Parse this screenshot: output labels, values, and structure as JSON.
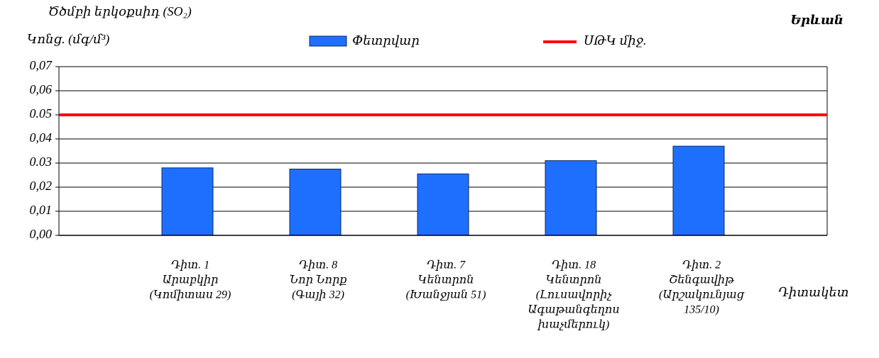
{
  "chart_data": {
    "type": "bar",
    "title": "Ծծմբի երկօքսիդ (SO₂)",
    "y_label": "Կոնց. (մգ/մ³)",
    "x_label": "Դիտակետ",
    "city": "Երևան",
    "categories": [
      [
        "Դիտ. 1",
        "Արաբկիր",
        "(Կոմիտաս 29)"
      ],
      [
        "Դիտ. 8",
        "Նոր Նորք",
        "(Գայի 32)"
      ],
      [
        "Դիտ. 7",
        "Կենտրոն",
        "(Խանջյան 51)"
      ],
      [
        "Դիտ. 18",
        "Կենտրոն",
        "(Լուսավորիչ",
        "Ագաթանգեղոս",
        "խաչմերուկ)"
      ],
      [
        "Դիտ. 2",
        "Շենգավիթ",
        "(Արշակունյաց",
        "135/10)"
      ]
    ],
    "series": [
      {
        "name": "Փետրվար",
        "color": "#1f6fff",
        "values": [
          0.028,
          0.0275,
          0.0255,
          0.031,
          0.037
        ]
      }
    ],
    "reference_line": {
      "name": "ՍԹԿ միջ.",
      "value": 0.05,
      "color": "#ff0000"
    },
    "ylim": [
      0,
      0.07
    ],
    "yticks": [
      {
        "value": 0,
        "label": "0,00"
      },
      {
        "value": 0.01,
        "label": "0,01"
      },
      {
        "value": 0.02,
        "label": "0,02"
      },
      {
        "value": 0.03,
        "label": "0.03"
      },
      {
        "value": 0.04,
        "label": "0,04"
      },
      {
        "value": 0.05,
        "label": "0.05"
      },
      {
        "value": 0.06,
        "label": "0,06"
      },
      {
        "value": 0.07,
        "label": "0,07"
      }
    ],
    "grid": true
  }
}
